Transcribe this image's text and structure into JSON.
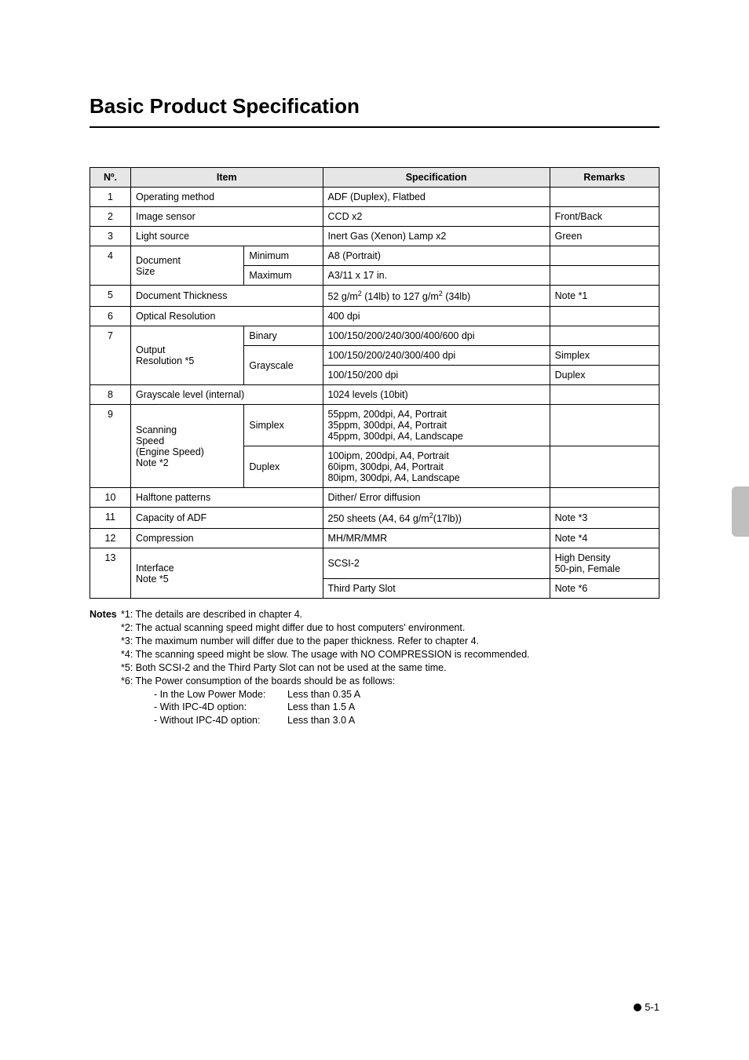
{
  "title": "Basic Product Specification",
  "table": {
    "header": {
      "no": "Nº.",
      "item": "Item",
      "spec": "Specification",
      "remarks": "Remarks"
    },
    "rows": {
      "r1": {
        "no": "1",
        "item": "Operating method",
        "spec": "ADF (Duplex), Flatbed",
        "remarks": ""
      },
      "r2": {
        "no": "2",
        "item": "Image sensor",
        "spec": "CCD x2",
        "remarks": "Front/Back"
      },
      "r3": {
        "no": "3",
        "item": "Light source",
        "spec": "Inert Gas (Xenon) Lamp x2",
        "remarks": "Green"
      },
      "r4a": {
        "no": "4",
        "item": "Document Size",
        "sub": "Minimum",
        "spec": "A8 (Portrait)",
        "remarks": ""
      },
      "r4b": {
        "sub": "Maximum",
        "spec": "A3/11 x 17 in.",
        "remarks": ""
      },
      "r5": {
        "no": "5",
        "item": "Document Thickness",
        "spec": "52 g/m² (14lb) to 127 g/m² (34lb)",
        "remarks": "Note *1"
      },
      "r6": {
        "no": "6",
        "item": "Optical Resolution",
        "spec": "400 dpi",
        "remarks": ""
      },
      "r7a": {
        "no": "7",
        "item": "Output Resolution *5",
        "sub": "Binary",
        "spec": "100/150/200/240/300/400/600 dpi",
        "remarks": ""
      },
      "r7b": {
        "sub": "Grayscale",
        "spec": "100/150/200/240/300/400 dpi",
        "remarks": "Simplex"
      },
      "r7c": {
        "spec": "100/150/200 dpi",
        "remarks": "Duplex"
      },
      "r8": {
        "no": "8",
        "item": "Grayscale level (internal)",
        "spec": "1024 levels (10bit)",
        "remarks": ""
      },
      "r9a": {
        "no": "9",
        "item": "Scanning Speed (Engine Speed) Note *2",
        "sub": "Simplex",
        "spec": "55ppm, 200dpi, A4, Portrait\n35ppm, 300dpi, A4, Portrait\n45ppm, 300dpi, A4, Landscape",
        "remarks": ""
      },
      "r9b": {
        "sub": "Duplex",
        "spec": "100ipm, 200dpi, A4, Portrait\n60ipm, 300dpi, A4, Portrait\n80ipm, 300dpi, A4, Landscape",
        "remarks": ""
      },
      "r10": {
        "no": "10",
        "item": "Halftone patterns",
        "spec": "Dither/ Error diffusion",
        "remarks": ""
      },
      "r11": {
        "no": "11",
        "item": "Capacity of ADF",
        "spec": "250 sheets (A4, 64 g/m²(17lb))",
        "remarks": "Note *3"
      },
      "r12": {
        "no": "12",
        "item": "Compression",
        "spec": "MH/MR/MMR",
        "remarks": "Note *4"
      },
      "r13a": {
        "no": "13",
        "item": "Interface Note *5",
        "spec": "SCSI-2",
        "remarks": "High Density 50-pin, Female"
      },
      "r13b": {
        "spec": "Third Party Slot",
        "remarks": "Note *6"
      }
    }
  },
  "notes": {
    "label": "Notes",
    "n1": "*1: The details are described in chapter 4.",
    "n2": "*2: The actual scanning speed might differ due to host computers' environment.",
    "n3": "*3: The maximum number will differ due to the paper thickness. Refer to chapter 4.",
    "n4": "*4: The scanning speed might be slow. The usage with NO COMPRESSION is recommended.",
    "n5": "*5: Both SCSI-2 and the Third Party Slot can not be used at the same time.",
    "n6": "*6: The Power consumption of the boards should be as follows:",
    "n6a_label": "- In the Low Power Mode:",
    "n6a_val": "Less than 0.35 A",
    "n6b_label": "- With IPC-4D option:",
    "n6b_val": "Less than 1.5 A",
    "n6c_label": "- Without IPC-4D option:",
    "n6c_val": "Less than 3.0 A"
  },
  "page_number": "5-1"
}
